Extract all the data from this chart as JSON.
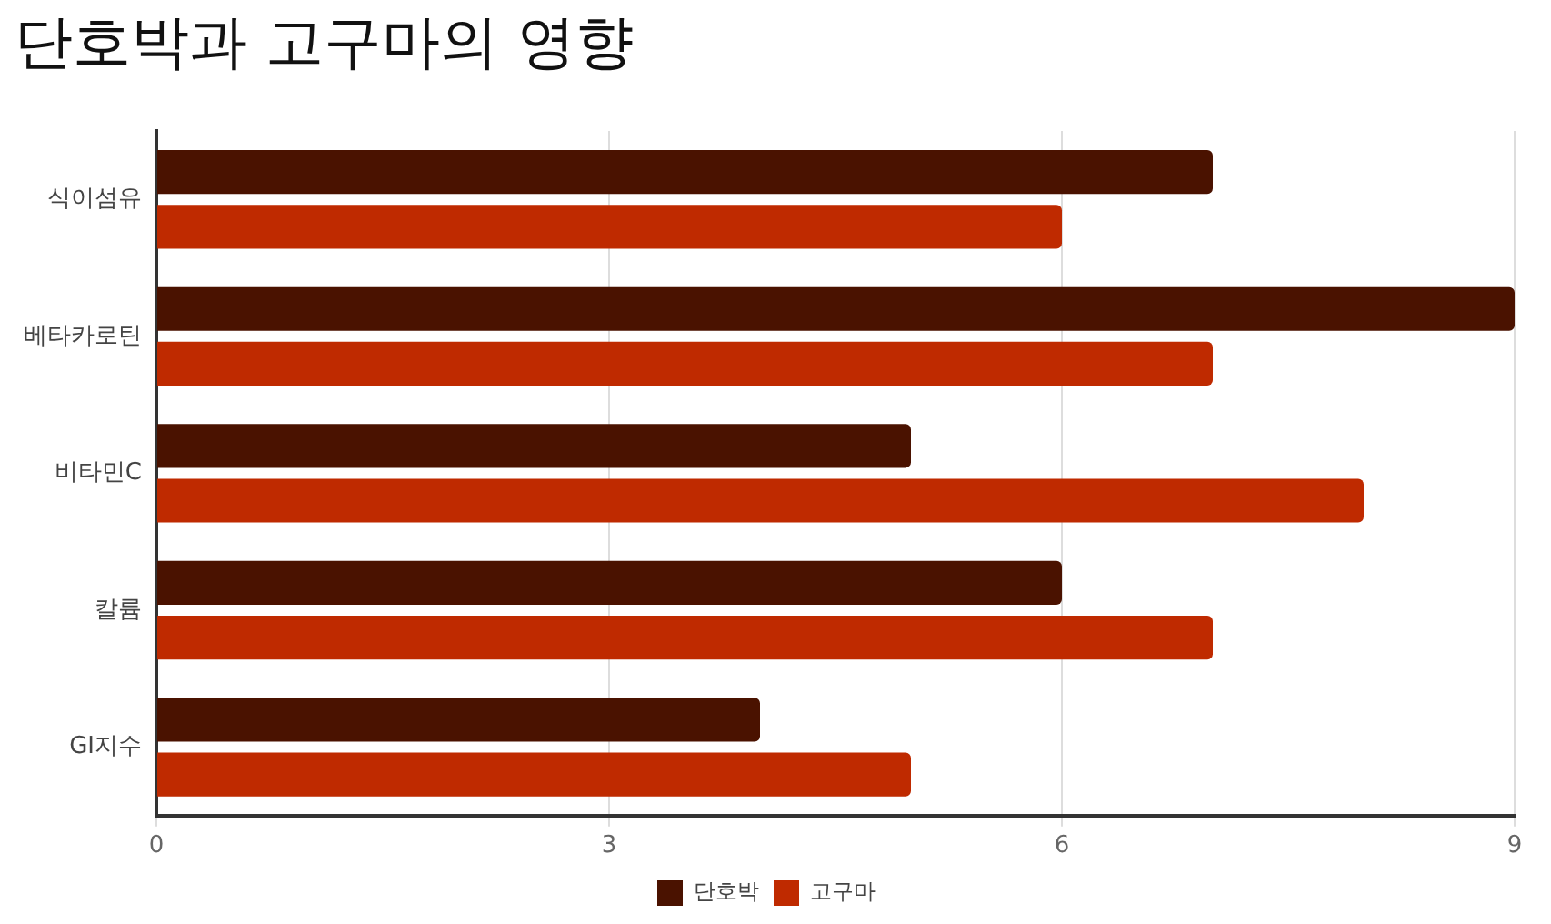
{
  "chart_data": {
    "type": "bar",
    "orientation": "horizontal",
    "title": "단호박과 고구마의 영향",
    "categories": [
      "식이섬유",
      "베타카로틴",
      "비타민C",
      "칼륨",
      "GI지수"
    ],
    "series": [
      {
        "name": "단호박",
        "color": "#4a1200",
        "values": [
          7,
          9,
          5,
          6,
          4
        ]
      },
      {
        "name": "고구마",
        "color": "#bf2a00",
        "values": [
          6,
          7,
          8,
          7,
          5
        ]
      }
    ],
    "xlim": [
      0,
      9
    ],
    "xticks": [
      0,
      3,
      6,
      9
    ],
    "grid": "x",
    "legend": "bottom"
  }
}
